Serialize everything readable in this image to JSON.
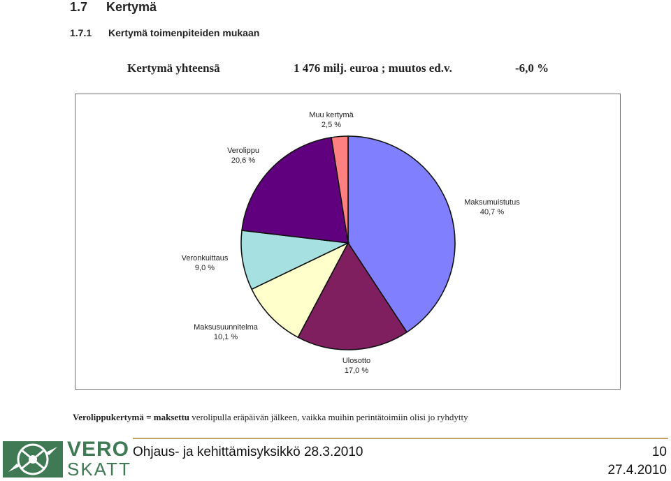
{
  "header": {
    "section_number": "1.7",
    "section_title": "Kertymä",
    "subsection_number": "1.7.1",
    "subsection_title": "Kertymä toimenpiteiden mukaan"
  },
  "summary": {
    "label": "Kertymä yhteensä",
    "value": "1 476 milj. euroa ; muutos ed.v.",
    "change": "-6,0 %"
  },
  "chart_data": {
    "type": "pie",
    "title": "",
    "slices": [
      {
        "name": "Maksumuistutus",
        "value": 40.7,
        "label": "40,7 %",
        "color": "#8080ff"
      },
      {
        "name": "Ulosotto",
        "value": 17.0,
        "label": "17,0 %",
        "color": "#7f1f5f"
      },
      {
        "name": "Maksusuunnitelma",
        "value": 10.1,
        "label": "10,1 %",
        "color": "#ffffcc"
      },
      {
        "name": "Veronkuittaus",
        "value": 9.0,
        "label": "9,0 %",
        "color": "#a6e0e0"
      },
      {
        "name": "Verolippu",
        "value": 20.6,
        "label": "20,6 %",
        "color": "#60007f"
      },
      {
        "name": "Muu kertymä",
        "value": 2.5,
        "label": "2,5 %",
        "color": "#ff8080"
      }
    ]
  },
  "footnote": {
    "term": "Verolippukertymä = maksettu",
    "rest": "verolipulla eräpäivän jälkeen, vaikka muihin perintätoimiin olisi jo ryhdytty"
  },
  "footer": {
    "logo_top": "VERO",
    "logo_bottom": "SKATT",
    "unit_text": "Ohjaus- ja kehittämisyksikkö 28.3.2010",
    "page_number": "10",
    "date": "27.4.2010"
  },
  "colors": {
    "accent_rule": "#c9a063",
    "logo_green": "#3f7a55"
  }
}
